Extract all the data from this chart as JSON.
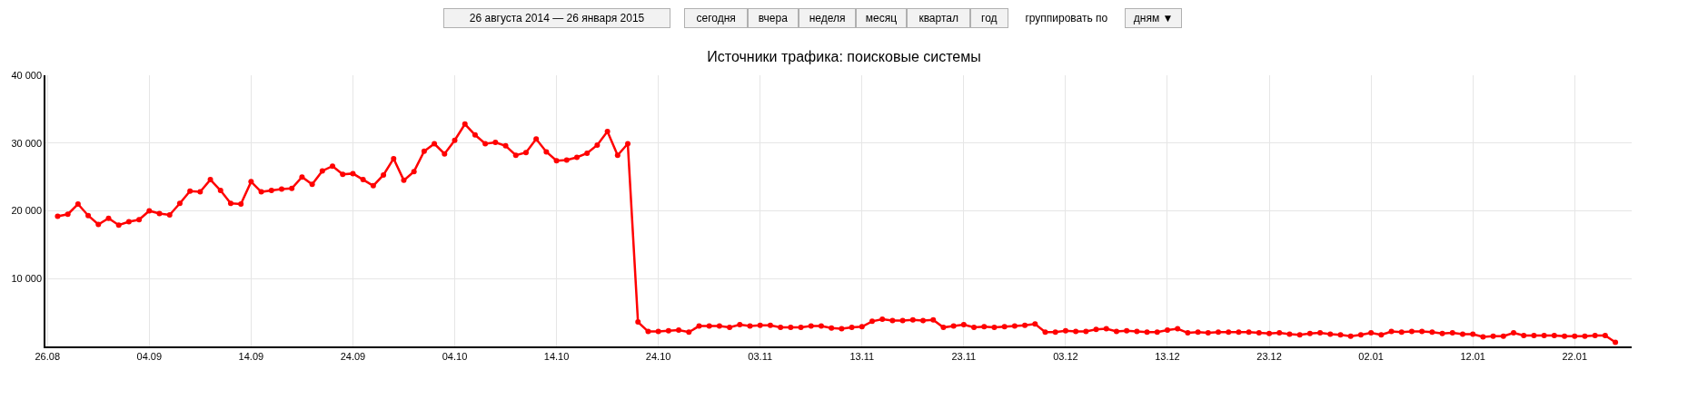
{
  "chart_data": {
    "type": "line",
    "title": "Источники трафика: поисковые системы",
    "annotations": [
      "26 августа 2014 — 26 января 2015",
      "сегодня",
      "вчера",
      "неделя",
      "месяц",
      "квартал",
      "год",
      "группировать по",
      "дням ▼"
    ],
    "categories": [
      "26.08",
      null,
      null,
      null,
      null,
      null,
      null,
      null,
      null,
      null,
      "04.09",
      null,
      null,
      null,
      null,
      null,
      null,
      null,
      null,
      null,
      "14.09",
      null,
      null,
      null,
      null,
      null,
      null,
      null,
      null,
      null,
      "24.09",
      null,
      null,
      null,
      null,
      null,
      null,
      null,
      null,
      null,
      "04.10",
      null,
      null,
      null,
      null,
      null,
      null,
      null,
      null,
      null,
      "14.10",
      null,
      null,
      null,
      null,
      null,
      null,
      null,
      null,
      null,
      "24.10",
      null,
      null,
      null,
      null,
      null,
      null,
      null,
      null,
      null,
      "03.11",
      null,
      null,
      null,
      null,
      null,
      null,
      null,
      null,
      null,
      "13.11",
      null,
      null,
      null,
      null,
      null,
      null,
      null,
      null,
      null,
      "23.11",
      null,
      null,
      null,
      null,
      null,
      null,
      null,
      null,
      null,
      "03.12",
      null,
      null,
      null,
      null,
      null,
      null,
      null,
      null,
      null,
      "13.12",
      null,
      null,
      null,
      null,
      null,
      null,
      null,
      null,
      null,
      "23.12",
      null,
      null,
      null,
      null,
      null,
      null,
      null,
      null,
      null,
      "02.01",
      null,
      null,
      null,
      null,
      null,
      null,
      null,
      null,
      null,
      "12.01",
      null,
      null,
      null,
      null,
      null,
      null,
      null,
      null,
      null,
      "22.01",
      null,
      null,
      null,
      null
    ],
    "series": [
      {
        "color": "#ff0000",
        "values": [
          null,
          19200,
          19500,
          21000,
          19300,
          18000,
          18900,
          17900,
          18400,
          18700,
          20000,
          19600,
          19400,
          21100,
          22900,
          22800,
          24600,
          23000,
          21100,
          21000,
          24300,
          22800,
          23000,
          23200,
          23300,
          25000,
          23900,
          25900,
          26600,
          25400,
          25500,
          24600,
          23700,
          25300,
          27700,
          24500,
          25800,
          28800,
          29900,
          28400,
          30400,
          32800,
          31200,
          29900,
          30100,
          29600,
          28200,
          28600,
          30600,
          28700,
          27400,
          27500,
          27900,
          28500,
          29700,
          31700,
          28200,
          29900,
          3600,
          2200,
          2200,
          2300,
          2400,
          2100,
          3000,
          3000,
          3000,
          2800,
          3200,
          3000,
          3100,
          3100,
          2800,
          2800,
          2800,
          3000,
          3000,
          2700,
          2600,
          2800,
          2900,
          3700,
          4000,
          3800,
          3800,
          3900,
          3800,
          3900,
          2800,
          3000,
          3200,
          2800,
          2900,
          2800,
          2900,
          3000,
          3100,
          3300,
          2100,
          2100,
          2300,
          2200,
          2200,
          2500,
          2600,
          2200,
          2300,
          2200,
          2100,
          2100,
          2400,
          2600,
          2000,
          2100,
          2000,
          2100,
          2100,
          2100,
          2100,
          2000,
          1900,
          2000,
          1800,
          1700,
          1900,
          2000,
          1800,
          1700,
          1500,
          1700,
          2000,
          1700,
          2200,
          2100,
          2200,
          2200,
          2100,
          1900,
          2000,
          1800,
          1800,
          1400,
          1500,
          1500,
          2000,
          1600,
          1600,
          1600,
          1600,
          1500,
          1500,
          1500,
          1600,
          1600,
          600
        ]
      }
    ],
    "ylim": [
      0,
      40000
    ],
    "yticks": [
      {
        "value": 10000,
        "label": "10 000"
      },
      {
        "value": 20000,
        "label": "20 000"
      },
      {
        "value": 30000,
        "label": "30 000"
      },
      {
        "value": 40000,
        "label": "40 000"
      }
    ],
    "grid": true,
    "marker": "circle",
    "line_style": "solid"
  }
}
